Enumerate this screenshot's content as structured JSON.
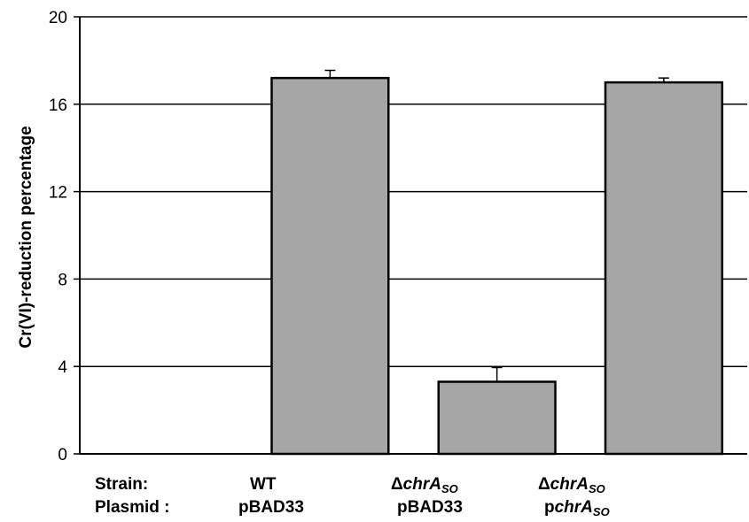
{
  "chart_data": {
    "type": "bar",
    "title": "",
    "ylabel": "Cr(VI)-reduction percentage",
    "xlabel": "",
    "ylim": [
      0,
      20
    ],
    "yticks": [
      0,
      4,
      8,
      12,
      16,
      20
    ],
    "grid": true,
    "bar_color": "#a6a6a6",
    "row_labels": {
      "strain": "Strain:",
      "plasmid": "Plasmid :"
    },
    "categories": [
      {
        "strain": "",
        "plasmid": ""
      },
      {
        "strain": "WT",
        "plasmid": "pBAD33"
      },
      {
        "strain": "ΔchrA_SO",
        "plasmid": "pBAD33"
      },
      {
        "strain": "ΔchrA_SO",
        "plasmid": "pchrA_SO"
      }
    ],
    "values": [
      null,
      17.2,
      3.3,
      17.0
    ],
    "errors": [
      null,
      0.35,
      0.65,
      0.2
    ]
  }
}
